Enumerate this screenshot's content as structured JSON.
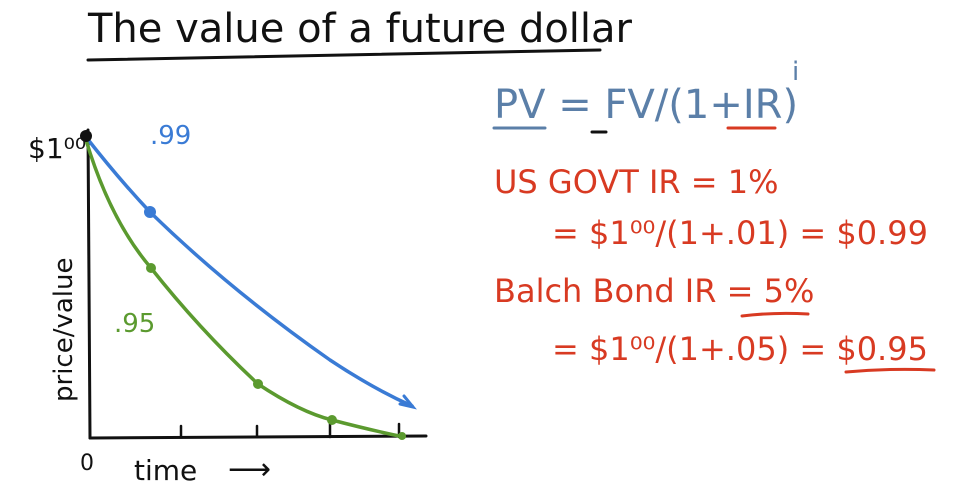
{
  "title": "The value of a future dollar",
  "colors": {
    "ink": "#111111",
    "blue": "#3a7bd5",
    "formula": "#5b7fa8",
    "green": "#5b9a2f",
    "red": "#d83a22"
  },
  "graph": {
    "y_axis_label": "price/value",
    "x_axis_label": "time",
    "x_arrow": "⟶",
    "origin_label": "0",
    "start_value_label": "$1⁰⁰",
    "blue_curve_label": ".99",
    "green_curve_label": ".95"
  },
  "formula": {
    "text": "PV = FV/(1+IR)",
    "exponent": "i"
  },
  "us_govt": {
    "heading": "US GOVT IR = 1%",
    "calc": "= $1⁰⁰/(1+.01) = $0.99"
  },
  "balch": {
    "heading": "Balch Bond IR = 5%",
    "calc": "= $1⁰⁰/(1+.05) = $0.95"
  }
}
